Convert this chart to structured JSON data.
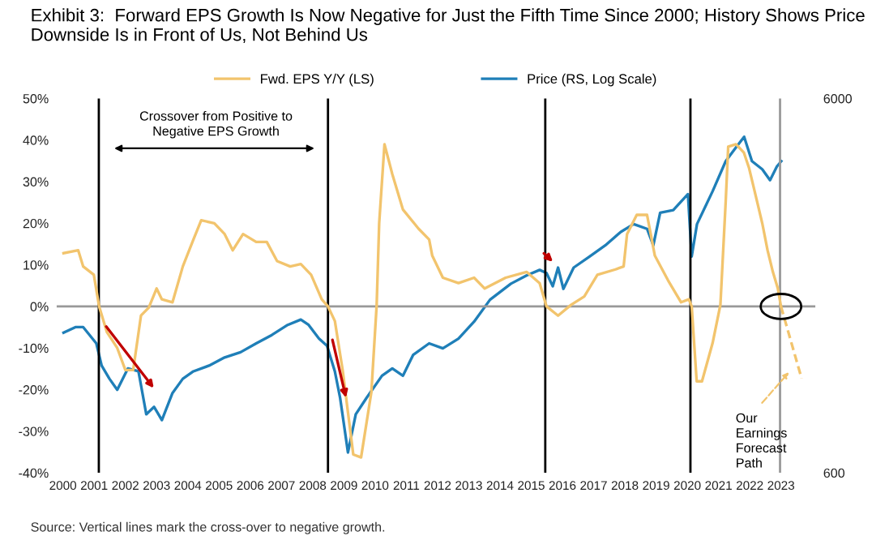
{
  "chart_data": {
    "type": "line",
    "title": "Exhibit 3:  Forward EPS Growth Is Now Negative for Just the Fifth Time Since 2000; History Shows Price Downside Is in Front of Us, Not Behind Us",
    "series": [
      {
        "name": "Fwd. EPS Y/Y (LS)",
        "color": "#f2c46d",
        "x": [
          2000.02,
          2000.49,
          2000.65,
          2000.99,
          2001.16,
          2001.41,
          2001.74,
          2002.0,
          2002.25,
          2002.5,
          2002.75,
          2003.0,
          2003.17,
          2003.51,
          2003.84,
          2004.18,
          2004.43,
          2004.85,
          2005.18,
          2005.44,
          2005.77,
          2006.19,
          2006.53,
          2006.86,
          2007.28,
          2007.62,
          2007.95,
          2008.29,
          2008.49,
          2008.71,
          2008.96,
          2009.3,
          2009.55,
          2009.88,
          2010.05,
          2010.13,
          2010.3,
          2010.55,
          2010.89,
          2011.39,
          2011.73,
          2011.83,
          2012.17,
          2012.67,
          2013.17,
          2013.51,
          2014.18,
          2014.85,
          2015.27,
          2015.49,
          2015.86,
          2016.28,
          2016.7,
          2017.12,
          2017.7,
          2017.96,
          2018.07,
          2018.38,
          2018.71,
          2018.96,
          2019.38,
          2019.8,
          2020.05,
          2020.14,
          2020.3,
          2020.47,
          2020.81,
          2021.06,
          2021.23,
          2021.31,
          2021.56,
          2021.81,
          2021.98,
          2022.15,
          2022.4,
          2022.57,
          2022.74,
          2022.9,
          2023.0
        ],
        "values": [
          12.8,
          13.5,
          9.6,
          7.6,
          0,
          -6.2,
          -10,
          -15.3,
          -15.3,
          -2.2,
          -0.3,
          4.3,
          1.7,
          1,
          9.6,
          16.1,
          20.7,
          20,
          17.4,
          13.5,
          17.4,
          15.5,
          15.5,
          10.9,
          9.6,
          10.2,
          7.6,
          1.7,
          0,
          -3.5,
          -15.3,
          -35.6,
          -36.3,
          -20.6,
          0.4,
          20,
          39,
          31.8,
          23.3,
          18.7,
          16.1,
          12.2,
          6.9,
          5.6,
          6.9,
          4.3,
          6.9,
          8.3,
          5.6,
          0,
          -2.2,
          0.4,
          2.4,
          7.6,
          8.9,
          9.6,
          17.4,
          22,
          22,
          12.2,
          6.3,
          1,
          1.7,
          0,
          -18,
          -18,
          -8.8,
          0.4,
          25.3,
          38.4,
          39,
          37,
          33.2,
          27.9,
          20,
          13.5,
          8.3,
          4.3,
          0
        ]
      },
      {
        "name": "Price (RS, Log Scale)",
        "color": "#1f7fb8",
        "axis": "y2",
        "x": [
          2000.02,
          2000.4,
          2000.65,
          2001.07,
          2001.24,
          2001.49,
          2001.74,
          2002.08,
          2002.42,
          2002.67,
          2002.92,
          2003.17,
          2003.51,
          2003.84,
          2004.18,
          2004.68,
          2005.18,
          2005.69,
          2006.19,
          2006.69,
          2007.2,
          2007.62,
          2007.87,
          2008.2,
          2008.46,
          2008.71,
          2008.88,
          2009.13,
          2009.38,
          2009.72,
          2010.22,
          2010.55,
          2010.89,
          2011.22,
          2011.73,
          2012.17,
          2012.67,
          2013.17,
          2013.68,
          2014.35,
          2014.85,
          2015.27,
          2015.49,
          2015.69,
          2015.86,
          2016.03,
          2016.36,
          2016.87,
          2017.37,
          2017.87,
          2018.28,
          2018.71,
          2018.91,
          2019.13,
          2019.55,
          2020.02,
          2020.14,
          2020.31,
          2020.81,
          2021.23,
          2021.56,
          2021.82,
          2022.07,
          2022.4,
          2022.65,
          2022.87,
          2023.01
        ],
        "values": [
          1420,
          1470,
          1470,
          1330,
          1160,
          1070,
          1000,
          1140,
          1120,
          860,
          900,
          830,
          980,
          1070,
          1120,
          1160,
          1220,
          1260,
          1330,
          1400,
          1490,
          1540,
          1490,
          1370,
          1310,
          1120,
          950,
          680,
          860,
          950,
          1090,
          1140,
          1090,
          1240,
          1330,
          1290,
          1370,
          1520,
          1740,
          1920,
          2020,
          2090,
          2050,
          1890,
          2120,
          1860,
          2120,
          2270,
          2430,
          2640,
          2770,
          2690,
          2430,
          2970,
          3020,
          3330,
          2270,
          2770,
          3390,
          4080,
          4440,
          4740,
          4080,
          3880,
          3630,
          3950,
          4080
        ]
      },
      {
        "color": "#f2c46d",
        "line_style": "dashed",
        "x": [
          2023.0,
          2023.66
        ],
        "values": [
          0,
          -17.3
        ]
      }
    ],
    "xlim": [
      1999.8,
      2024.1
    ],
    "xticks": [
      2000,
      2001,
      2002,
      2003,
      2004,
      2005,
      2006,
      2007,
      2008,
      2009,
      2010,
      2011,
      2012,
      2013,
      2014,
      2015,
      2016,
      2017,
      2018,
      2019,
      2020,
      2021,
      2022,
      2023
    ],
    "ylim": [
      -40,
      50
    ],
    "yticks": [
      {
        "value": -40,
        "label": "-40%"
      },
      {
        "value": -30,
        "label": "-30%"
      },
      {
        "value": -20,
        "label": "-20%"
      },
      {
        "value": -10,
        "label": "-10%"
      },
      {
        "value": 0,
        "label": "0%"
      },
      {
        "value": 10,
        "label": "10%"
      },
      {
        "value": 20,
        "label": "20%"
      },
      {
        "value": 30,
        "label": "30%"
      },
      {
        "value": 40,
        "label": "40%"
      },
      {
        "value": 50,
        "label": "50%"
      }
    ],
    "y2lim": [
      600,
      6000
    ],
    "y2ticks": [
      600,
      6000
    ],
    "log": "y2",
    "grid": false,
    "legend": "top",
    "ref_lines": [
      {
        "axis": "y",
        "value": 0,
        "color": "#999999"
      },
      {
        "axis": "x",
        "value": 2001.15,
        "color": "#000000"
      },
      {
        "axis": "x",
        "value": 2008.49,
        "color": "#000000"
      },
      {
        "axis": "x",
        "value": 2015.45,
        "color": "#000000"
      },
      {
        "axis": "x",
        "value": 2020.1,
        "color": "#000000"
      },
      {
        "axis": "x",
        "value": 2022.97,
        "color": "#999999"
      }
    ],
    "annotations": [
      "Crossover from Positive to\nNegative EPS Growth",
      "Our\nEarnings\nForecast\nPath",
      "Source: Vertical lines mark the cross-over to negative growth."
    ]
  }
}
